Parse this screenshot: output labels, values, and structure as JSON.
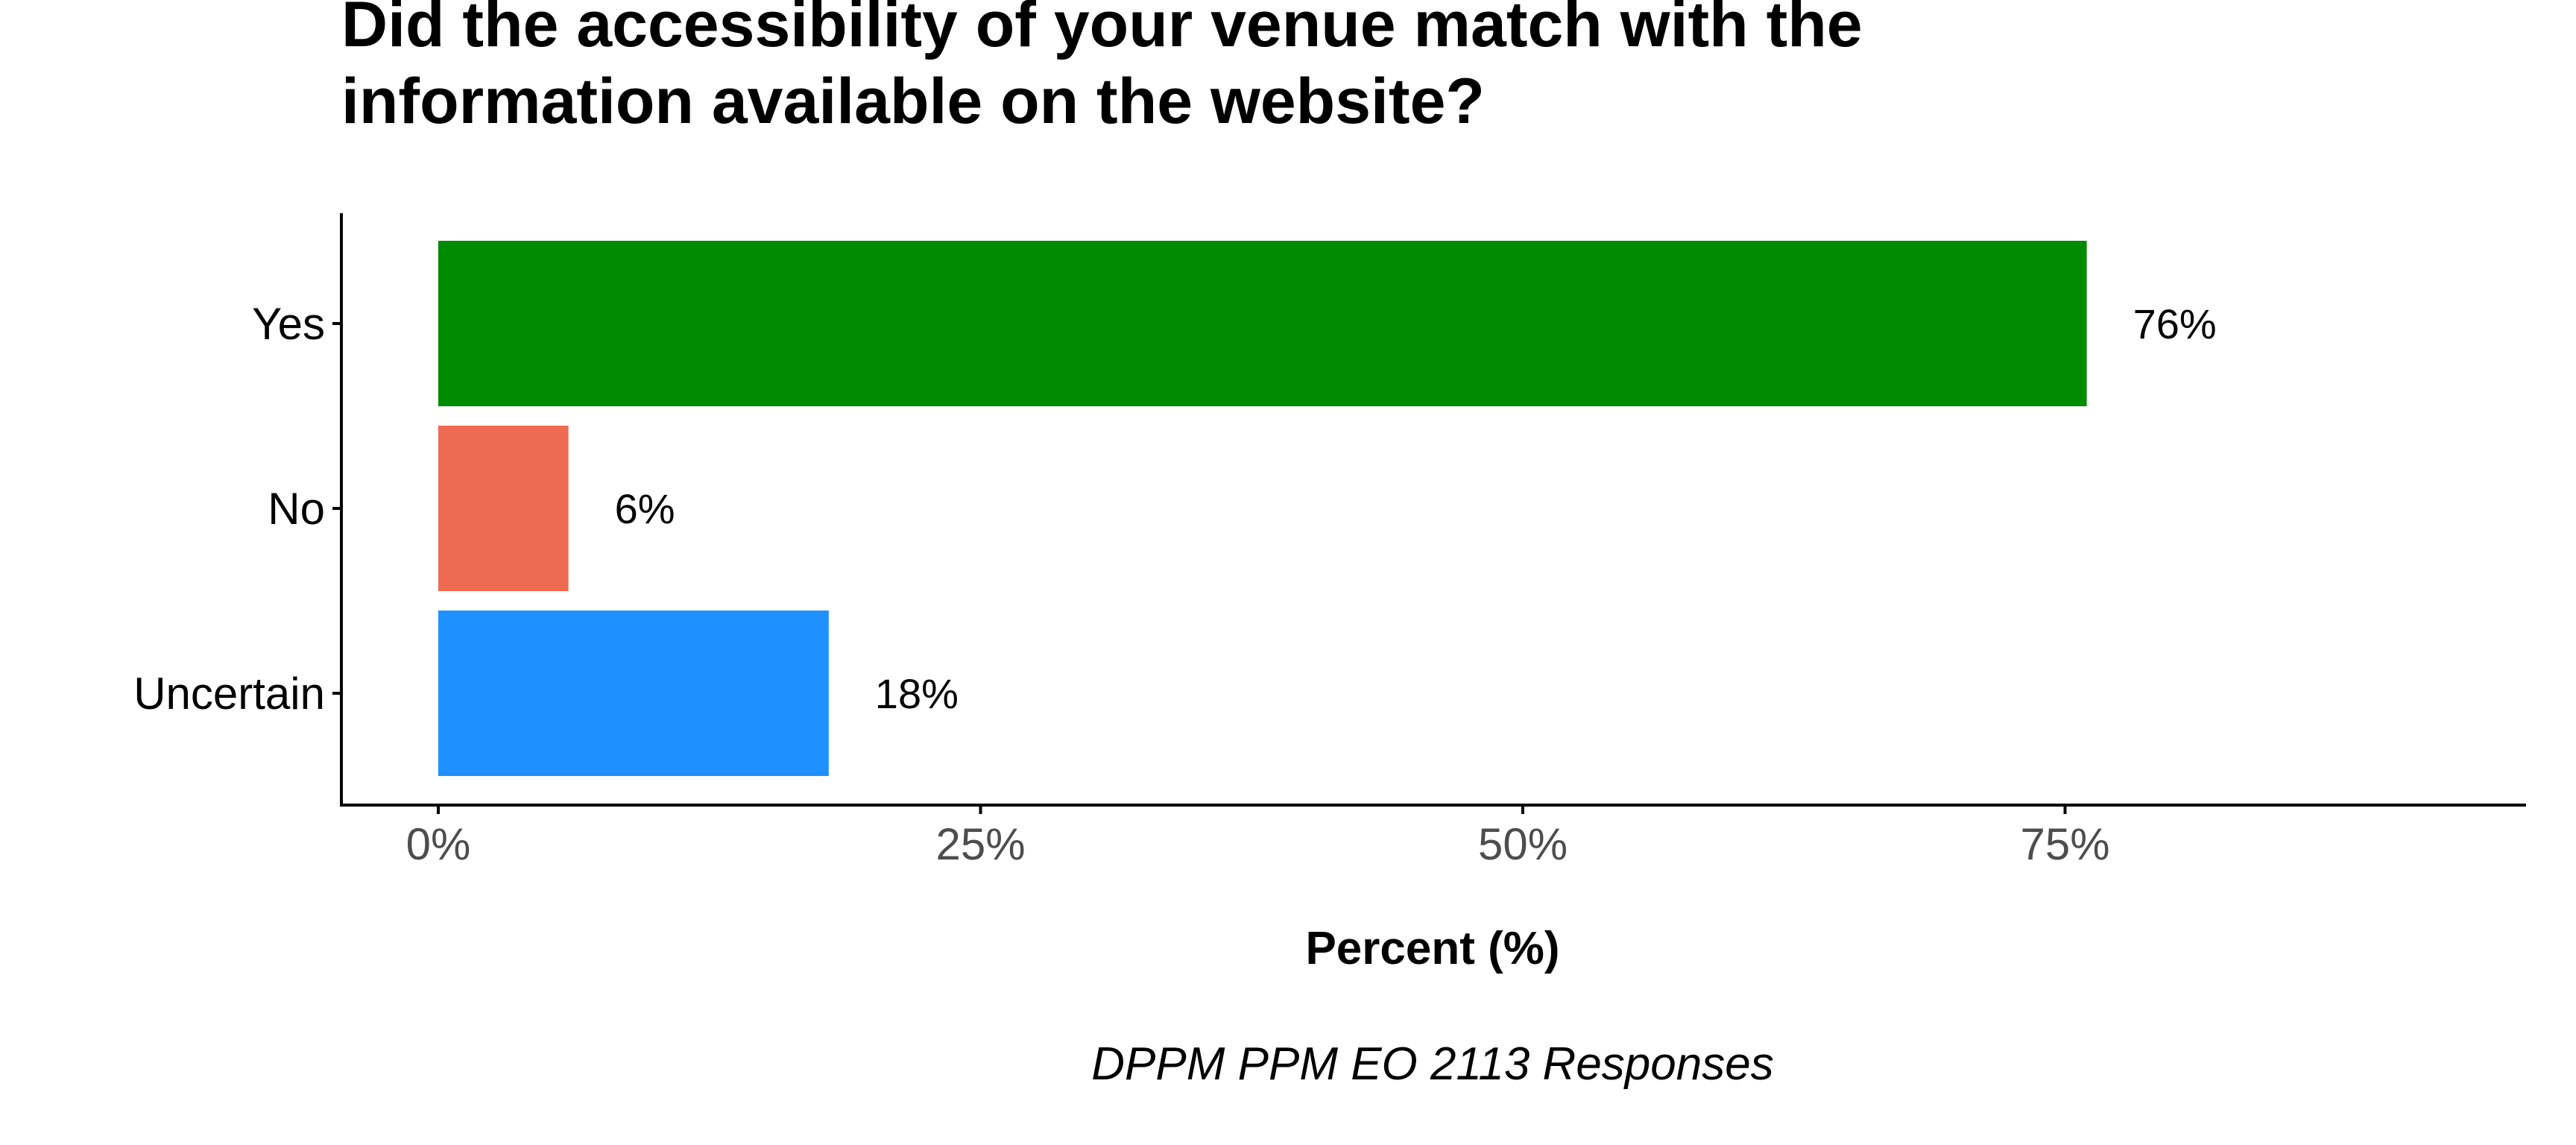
{
  "chart_data": {
    "type": "bar",
    "orientation": "horizontal",
    "title_lines": [
      "Did the accessibility of your venue match with the",
      "information available on the website?"
    ],
    "categories": [
      "Yes",
      "No",
      "Uncertain"
    ],
    "values": [
      76,
      6,
      18
    ],
    "value_labels": [
      "76%",
      "6%",
      "18%"
    ],
    "colors": [
      "#008B00",
      "#EE6A50",
      "#1E90FF"
    ],
    "xlabel": "Percent (%)",
    "ylabel": "",
    "xlim": [
      0,
      100
    ],
    "xticks": [
      0,
      25,
      50,
      75
    ],
    "xtick_labels": [
      "0%",
      "25%",
      "50%",
      "75%"
    ],
    "caption": "DPPM PPM EO 2113 Responses",
    "grid": false,
    "legend": "none"
  }
}
